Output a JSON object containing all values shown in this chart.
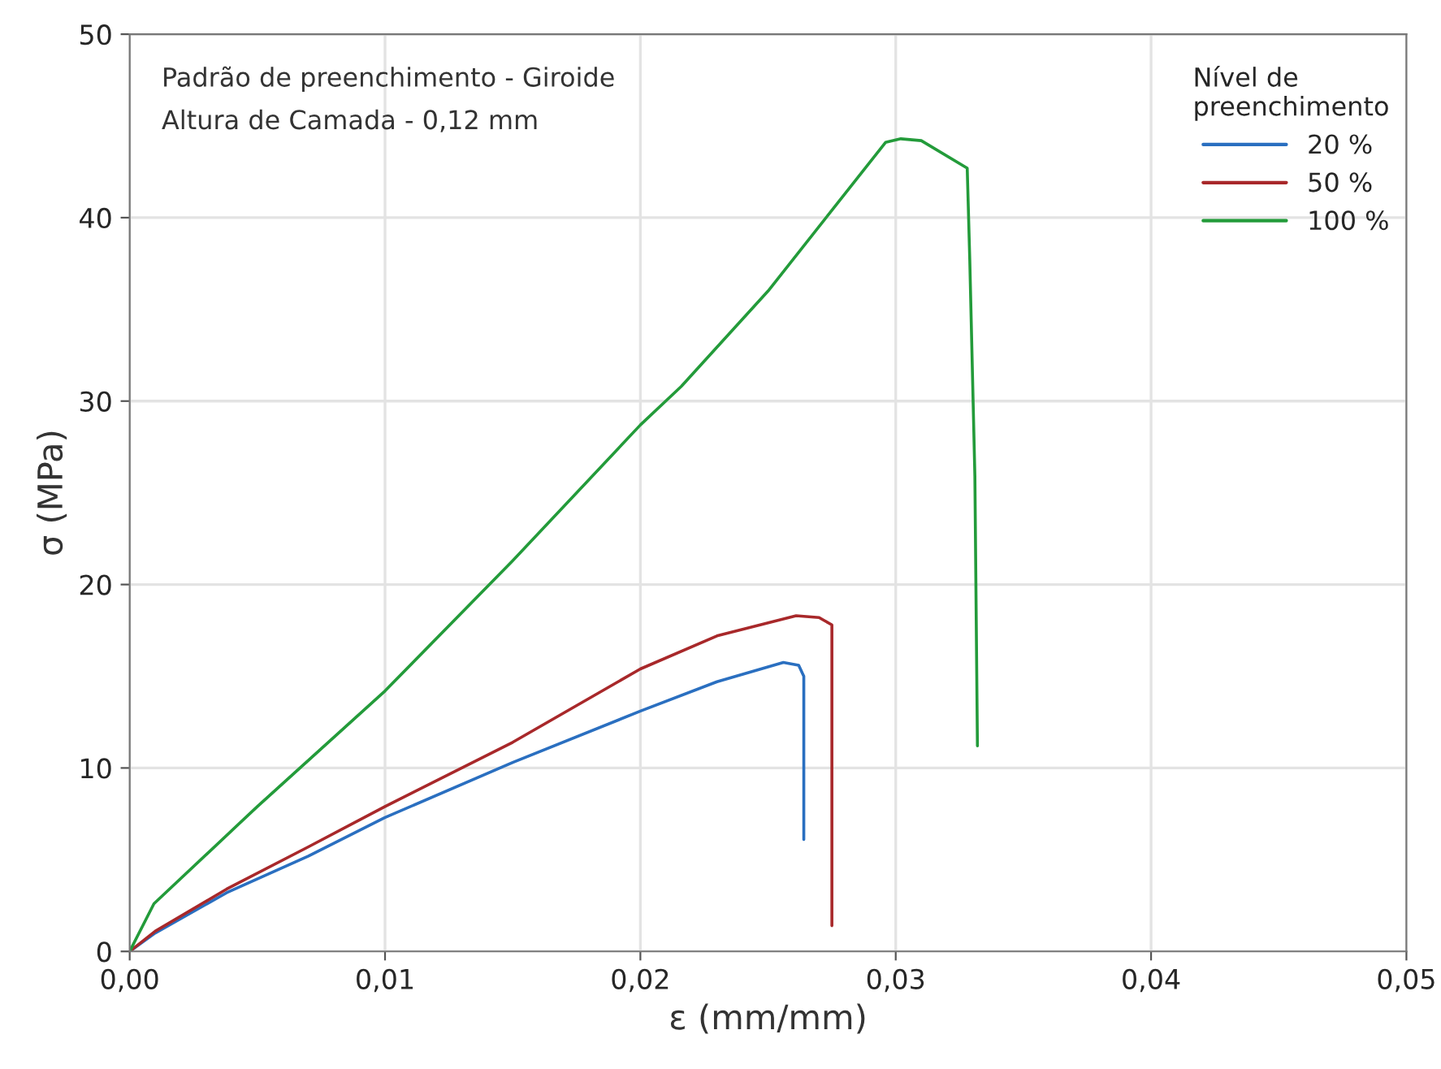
{
  "chart_data": {
    "type": "line",
    "xlabel": "ε (mm/mm)",
    "ylabel": "σ (MPa)",
    "legend_title": "Nível de\npreenchimento",
    "annotations": [
      "Padrão de preenchimento - Giroide",
      "Altura de Camada - 0,12 mm"
    ],
    "xlim": [
      0,
      0.05
    ],
    "ylim": [
      0,
      50
    ],
    "xticks": [
      {
        "value": 0,
        "label": "0,00"
      },
      {
        "value": 0.01,
        "label": "0,01"
      },
      {
        "value": 0.02,
        "label": "0,02"
      },
      {
        "value": 0.03,
        "label": "0,03"
      },
      {
        "value": 0.04,
        "label": "0,04"
      },
      {
        "value": 0.05,
        "label": "0,05"
      }
    ],
    "yticks": [
      0,
      10,
      20,
      30,
      40,
      50
    ],
    "grid": true,
    "legend": "top right",
    "marker": "none",
    "line_style": "solid",
    "series": [
      {
        "name": "20 %",
        "color": "#2a6fc0",
        "x": [
          0,
          0.001,
          0.0038,
          0.007,
          0.01,
          0.015,
          0.02,
          0.023,
          0.0256,
          0.0262,
          0.0264,
          0.0264
        ],
        "values": [
          0,
          1.0,
          3.2,
          5.2,
          7.3,
          10.3,
          13.1,
          14.7,
          15.75,
          15.6,
          15.0,
          6.1
        ]
      },
      {
        "name": "50 %",
        "color": "#a8282a",
        "x": [
          0,
          0.001,
          0.0038,
          0.007,
          0.01,
          0.015,
          0.02,
          0.023,
          0.0261,
          0.027,
          0.0275,
          0.0275
        ],
        "values": [
          0,
          1.1,
          3.4,
          5.7,
          7.9,
          11.4,
          15.4,
          17.2,
          18.3,
          18.2,
          17.8,
          1.4
        ]
      },
      {
        "name": "100 %",
        "color": "#239b3a",
        "x": [
          0,
          0.00095,
          0.005,
          0.01,
          0.015,
          0.02,
          0.0216,
          0.025,
          0.0296,
          0.0302,
          0.031,
          0.0328,
          0.0329,
          0.0331,
          0.0332
        ],
        "values": [
          0,
          2.6,
          7.9,
          14.2,
          21.3,
          28.7,
          30.8,
          36.0,
          44.1,
          44.3,
          44.2,
          42.7,
          37.7,
          25.9,
          11.2
        ]
      }
    ]
  }
}
